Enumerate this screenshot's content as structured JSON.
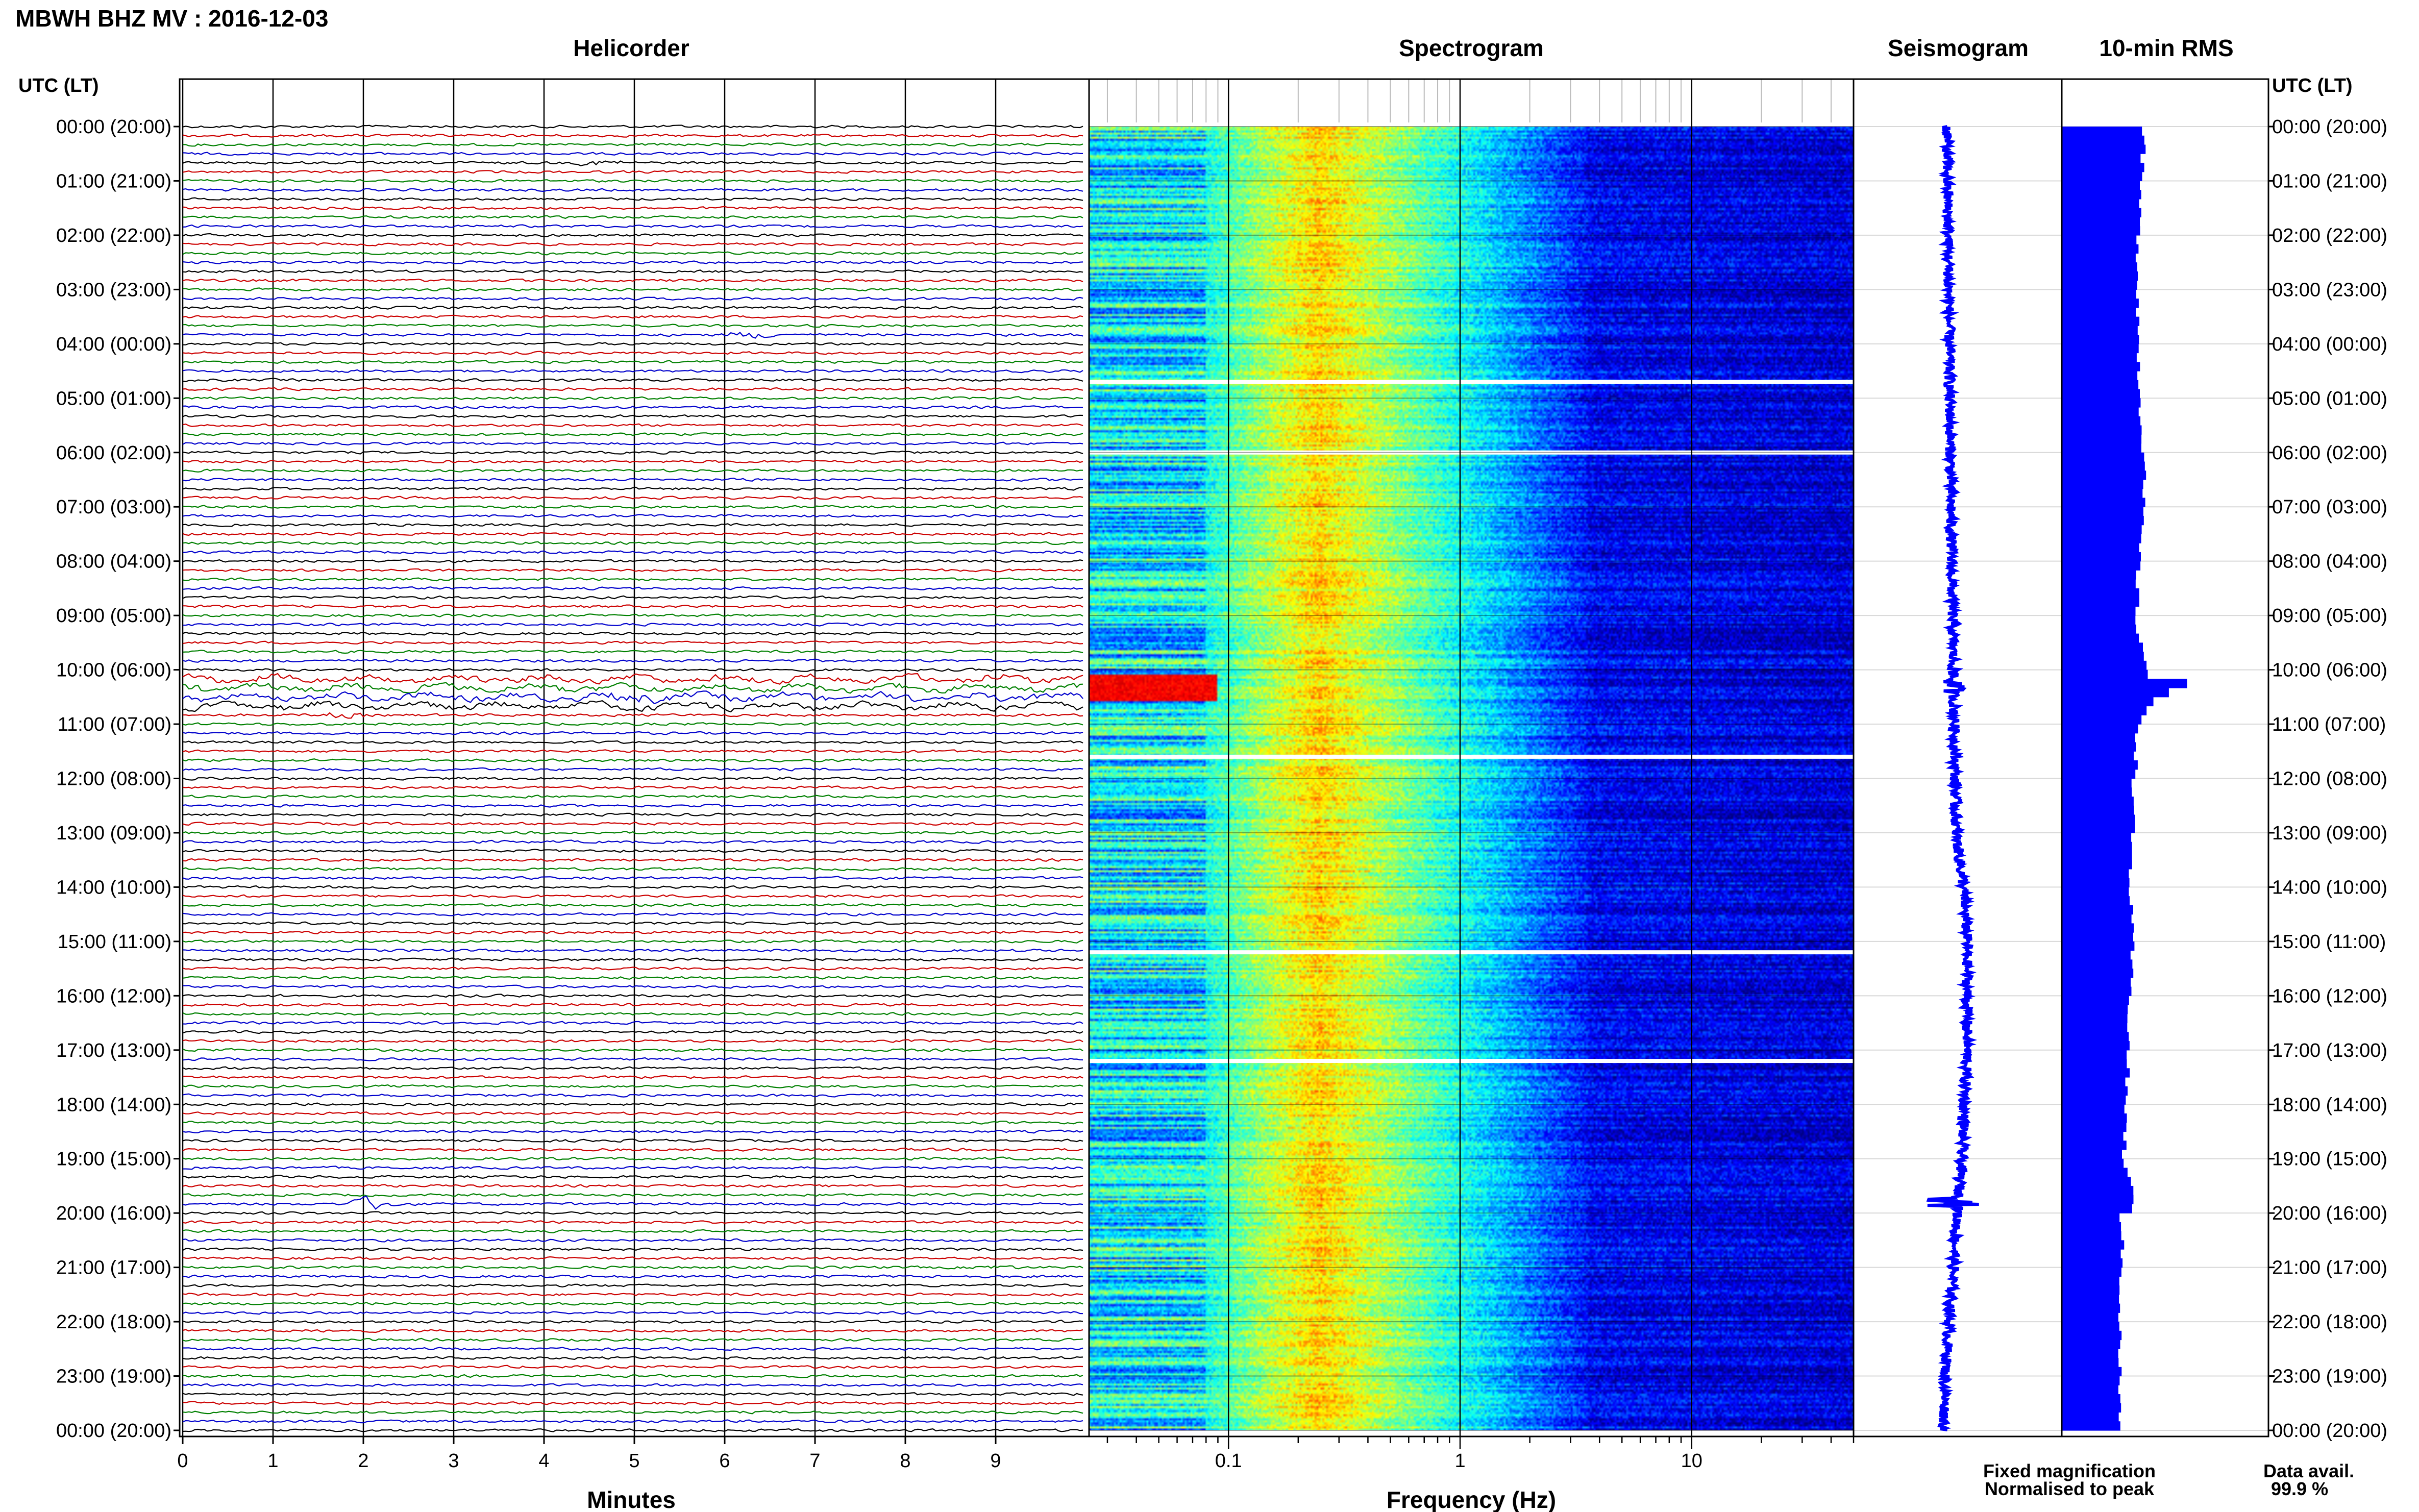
{
  "header": {
    "station_title": "MBWH BHZ MV : 2016-12-03",
    "panel_titles": {
      "helicorder": "Helicorder",
      "spectrogram": "Spectrogram",
      "seismogram": "Seismogram",
      "rms": "10-min RMS"
    }
  },
  "axes": {
    "time_header_left": "UTC (LT)",
    "time_header_right": "UTC (LT)",
    "helicorder_xlabel": "Minutes",
    "spectrogram_xlabel": "Frequency (Hz)"
  },
  "legend": {
    "fixed_magnification": "Fixed magnification",
    "normalised_to_peak": "Normalised to peak",
    "fixed_color": "#1a1aff",
    "normalised_color": "#ff0000"
  },
  "data_availability": {
    "label": "Data avail.",
    "value": "99.9 %"
  },
  "colors": {
    "trace_cycle": [
      "#000000",
      "#cc0000",
      "#008000",
      "#0000cc"
    ],
    "rms_bar": "#0000ff",
    "seismogram": "#0000ff"
  },
  "chart_data": [
    {
      "type": "line",
      "name": "helicorder",
      "title": "Helicorder",
      "xlabel": "Minutes",
      "x_ticks": [
        "0",
        "1",
        "2",
        "3",
        "4",
        "5",
        "6",
        "7",
        "8",
        "9"
      ],
      "xlim": [
        0,
        10
      ],
      "y_time_ticks": [
        "00:00 (20:00)",
        "01:00 (21:00)",
        "02:00 (22:00)",
        "03:00 (23:00)",
        "04:00 (00:00)",
        "05:00 (01:00)",
        "06:00 (02:00)",
        "07:00 (03:00)",
        "08:00 (04:00)",
        "09:00 (05:00)",
        "10:00 (06:00)",
        "11:00 (07:00)",
        "12:00 (08:00)",
        "13:00 (09:00)",
        "14:00 (10:00)",
        "15:00 (11:00)",
        "16:00 (12:00)",
        "17:00 (13:00)",
        "18:00 (14:00)",
        "19:00 (15:00)",
        "20:00 (16:00)",
        "21:00 (17:00)",
        "22:00 (18:00)",
        "23:00 (19:00)",
        "00:00 (20:00)"
      ],
      "line_interval_minutes": 10,
      "events": [
        {
          "hour": 0.6,
          "minute": 4.6,
          "strength": 0.6
        },
        {
          "hour": 3.8,
          "minute": 6.3,
          "strength": 0.7
        },
        {
          "hour": 10.5,
          "minute": 5.0,
          "strength": 1.0
        },
        {
          "hour": 10.9,
          "minute": 1.8,
          "strength": 0.6
        },
        {
          "hour": 19.8,
          "minute": 2.1,
          "strength": 1.4
        },
        {
          "hour": 21.0,
          "minute": 9.0,
          "strength": 0.5
        }
      ]
    },
    {
      "type": "heatmap",
      "name": "spectrogram",
      "title": "Spectrogram",
      "xlabel": "Frequency (Hz)",
      "x_scale": "log",
      "xlim": [
        0.025,
        50
      ],
      "x_ticks": [
        "0.1",
        "1",
        "10"
      ],
      "colormap": "jet",
      "gaps_utc_hours": [
        4.7,
        6.0,
        11.6,
        15.2,
        17.2
      ]
    },
    {
      "type": "line",
      "name": "seismogram",
      "title": "Seismogram",
      "ylim_hours": [
        0,
        24
      ],
      "centre_offset_by_hour": [
        {
          "hour": 0,
          "offset": 0.0
        },
        {
          "hour": 8,
          "offset": 0.05
        },
        {
          "hour": 13,
          "offset": 0.1
        },
        {
          "hour": 14,
          "offset": 0.18
        },
        {
          "hour": 15,
          "offset": 0.22
        },
        {
          "hour": 17,
          "offset": 0.22
        },
        {
          "hour": 19,
          "offset": 0.16
        },
        {
          "hour": 21,
          "offset": 0.07
        },
        {
          "hour": 23,
          "offset": -0.02
        },
        {
          "hour": 24,
          "offset": -0.03
        }
      ]
    },
    {
      "type": "bar",
      "name": "rms",
      "title": "10-min RMS",
      "orientation": "horizontal",
      "values_by_hour": [
        {
          "hour": 0,
          "value": 0.4
        },
        {
          "hour": 1,
          "value": 0.38
        },
        {
          "hour": 2,
          "value": 0.37
        },
        {
          "hour": 3,
          "value": 0.37
        },
        {
          "hour": 4,
          "value": 0.37
        },
        {
          "hour": 5,
          "value": 0.38
        },
        {
          "hour": 6,
          "value": 0.4
        },
        {
          "hour": 7,
          "value": 0.39
        },
        {
          "hour": 8,
          "value": 0.37
        },
        {
          "hour": 9,
          "value": 0.36
        },
        {
          "hour": 10,
          "value": 0.42
        },
        {
          "hour": 10.2,
          "value": 0.63
        },
        {
          "hour": 10.4,
          "value": 0.45
        },
        {
          "hour": 11,
          "value": 0.37
        },
        {
          "hour": 12,
          "value": 0.35
        },
        {
          "hour": 13,
          "value": 0.34
        },
        {
          "hour": 14,
          "value": 0.33
        },
        {
          "hour": 15,
          "value": 0.34
        },
        {
          "hour": 16,
          "value": 0.33
        },
        {
          "hour": 17,
          "value": 0.32
        },
        {
          "hour": 18,
          "value": 0.31
        },
        {
          "hour": 19,
          "value": 0.3
        },
        {
          "hour": 19.8,
          "value": 0.36
        },
        {
          "hour": 20,
          "value": 0.29
        },
        {
          "hour": 21,
          "value": 0.29
        },
        {
          "hour": 22,
          "value": 0.28
        },
        {
          "hour": 23,
          "value": 0.28
        },
        {
          "hour": 24,
          "value": 0.28
        }
      ]
    }
  ]
}
